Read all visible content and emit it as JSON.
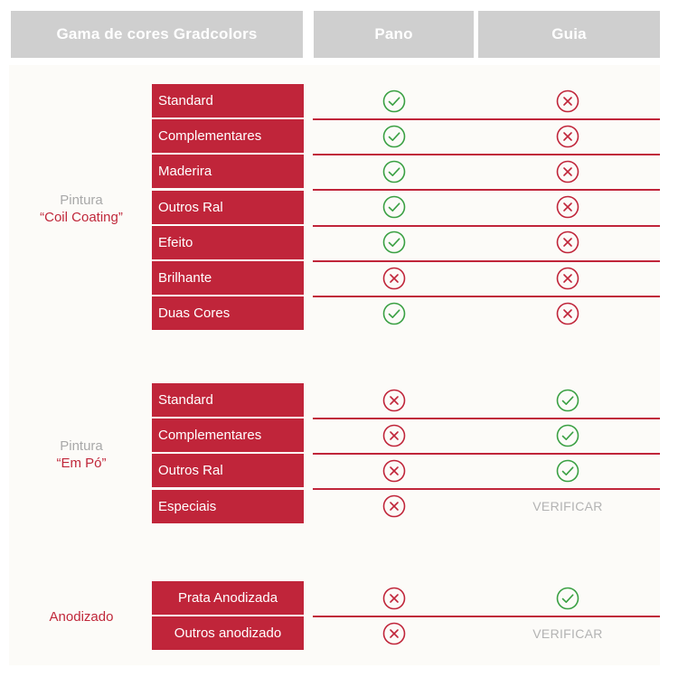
{
  "header": {
    "title": "Gama de cores Gradcolors",
    "col_pano": "Pano",
    "col_guia": "Guia"
  },
  "colors": {
    "accent": "#c0253a",
    "check": "#3aa043",
    "header_bg": "#cfcfcf"
  },
  "groups": [
    {
      "label_line1": "Pintura",
      "label_line2": "“Coil Coating”",
      "rows": [
        {
          "name": "Standard",
          "pano": "check",
          "guia": "cross"
        },
        {
          "name": "Complementares",
          "pano": "check",
          "guia": "cross"
        },
        {
          "name": "Maderira",
          "pano": "check",
          "guia": "cross"
        },
        {
          "name": "Outros Ral",
          "pano": "check",
          "guia": "cross"
        },
        {
          "name": "Efeito",
          "pano": "check",
          "guia": "cross"
        },
        {
          "name": "Brilhante",
          "pano": "cross",
          "guia": "cross"
        },
        {
          "name": "Duas Cores",
          "pano": "check",
          "guia": "cross"
        }
      ]
    },
    {
      "label_line1": "Pintura",
      "label_line2": "“Em Pó”",
      "rows": [
        {
          "name": "Standard",
          "pano": "cross",
          "guia": "check"
        },
        {
          "name": "Complementares",
          "pano": "cross",
          "guia": "check"
        },
        {
          "name": "Outros Ral",
          "pano": "cross",
          "guia": "check"
        },
        {
          "name": "Especiais",
          "pano": "cross",
          "guia": "VERIFICAR"
        }
      ]
    },
    {
      "label_line1": "",
      "label_line2": "Anodizado",
      "rows": [
        {
          "name": "Prata Anodizada",
          "pano": "cross",
          "guia": "check"
        },
        {
          "name": "Outros anodizado",
          "pano": "cross",
          "guia": "VERIFICAR"
        }
      ]
    }
  ]
}
